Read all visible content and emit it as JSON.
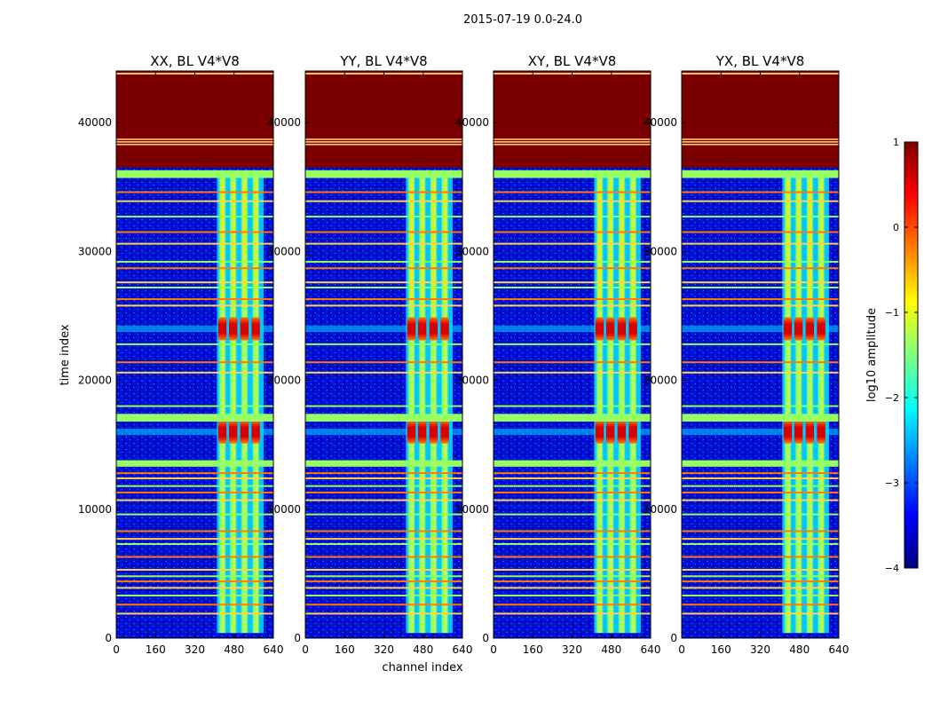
{
  "chart_data": {
    "type": "heatmap",
    "title": "2015-07-19 0.0-24.0",
    "xlabel": "channel index",
    "ylabel": "time index",
    "xlim": [
      0,
      640
    ],
    "ylim": [
      0,
      44000
    ],
    "xticks": [
      0,
      160,
      320,
      480,
      640
    ],
    "yticks": [
      0,
      10000,
      20000,
      30000,
      40000
    ],
    "panels": [
      {
        "title": "XX, BL V4*V8",
        "id": "xx"
      },
      {
        "title": "YY, BL V4*V8",
        "id": "yy"
      },
      {
        "title": "XY, BL V4*V8",
        "id": "xy"
      },
      {
        "title": "YX, BL V4*V8",
        "id": "yx"
      }
    ],
    "saturated_block": [
      36500,
      44000
    ],
    "flag_band_primary": [
      35700,
      36300
    ],
    "flag_band_secondary": [
      16800,
      17400
    ],
    "flag_band_tertiary": [
      13300,
      13800
    ],
    "flag_lines": [
      38800,
      38400,
      37900,
      34600,
      33900,
      32700,
      31500,
      30600,
      29200,
      28700,
      27600,
      27200,
      26300,
      25800,
      22800,
      21400,
      20600,
      18000,
      12800,
      12400,
      11800,
      11300,
      10700,
      9600,
      8300,
      7700,
      7300,
      6300,
      5300,
      4800,
      4400,
      3900,
      3300,
      2600,
      1900
    ],
    "active_channel_range": [
      410,
      600
    ],
    "strip_centers": [
      432,
      476,
      522,
      568
    ],
    "hot_rows": [
      24000,
      16000
    ],
    "colorbar": {
      "label": "log10 amplitude",
      "min": -4,
      "max": 1,
      "ticks": [
        "1",
        "0",
        "−1",
        "−2",
        "−3",
        "−4"
      ],
      "stops": [
        "#00007f",
        "#0000ff",
        "#007fff",
        "#00ffff",
        "#7fff7f",
        "#ffff00",
        "#ff7f00",
        "#ff0000",
        "#7f0000"
      ]
    },
    "grid": false
  }
}
